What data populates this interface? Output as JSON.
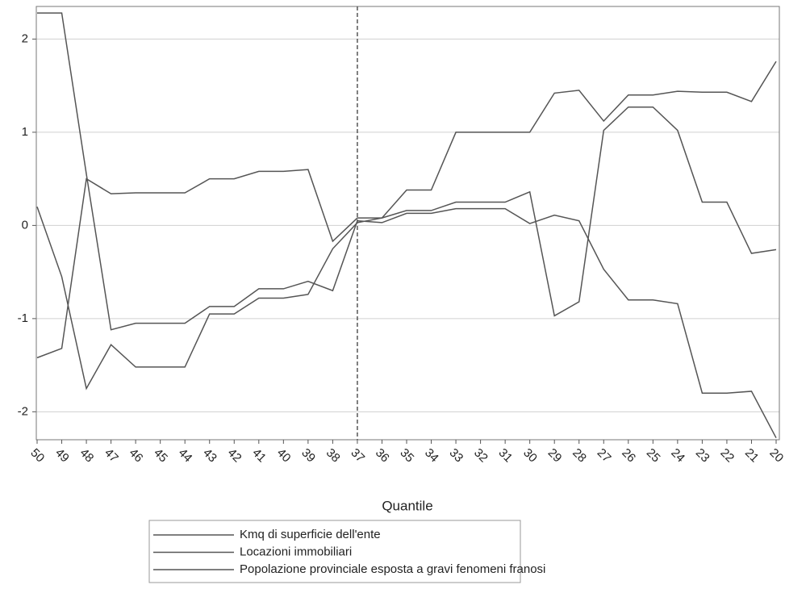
{
  "chart_data": {
    "type": "line",
    "x_label": "Quantile",
    "categories": [
      "50",
      "49",
      "48",
      "47",
      "46",
      "45",
      "44",
      "43",
      "42",
      "41",
      "40",
      "39",
      "38",
      "37",
      "36",
      "35",
      "34",
      "33",
      "32",
      "31",
      "30",
      "29",
      "28",
      "27",
      "26",
      "25",
      "24",
      "23",
      "22",
      "21",
      "20"
    ],
    "vline": "37",
    "ylim": [
      -2.3,
      2.35
    ],
    "yticks": [
      -2,
      -1,
      0,
      1,
      2
    ],
    "grid": true,
    "series": [
      {
        "name": "Kmq di superficie dell'ente",
        "color": "#555555",
        "values": [
          2.28,
          2.28,
          0.55,
          -1.12,
          -1.05,
          -1.05,
          -1.05,
          -0.87,
          -0.87,
          -0.68,
          -0.68,
          -0.6,
          -0.7,
          0.05,
          0.03,
          0.13,
          0.13,
          0.18,
          0.18,
          0.18,
          0.02,
          0.11,
          0.05,
          -0.47,
          -0.8,
          -0.8,
          -0.84,
          -1.8,
          -1.8,
          -1.78,
          -2.28
        ]
      },
      {
        "name": "Locazioni immobiliari",
        "color": "#555555",
        "values": [
          0.2,
          -0.55,
          -1.75,
          -1.28,
          -1.52,
          -1.52,
          -1.52,
          -0.95,
          -0.95,
          -0.78,
          -0.78,
          -0.74,
          -0.25,
          0.03,
          0.08,
          0.16,
          0.16,
          0.25,
          0.25,
          0.25,
          0.36,
          -0.97,
          -0.82,
          1.02,
          1.27,
          1.27,
          1.02,
          0.25,
          0.25,
          -0.3,
          -0.26
        ]
      },
      {
        "name": "Popolazione provinciale esposta a gravi fenomeni franosi",
        "color": "#555555",
        "values": [
          -1.42,
          -1.32,
          0.5,
          0.34,
          0.35,
          0.35,
          0.35,
          0.5,
          0.5,
          0.58,
          0.58,
          0.6,
          -0.17,
          0.08,
          0.08,
          0.38,
          0.38,
          1.0,
          1.0,
          1.0,
          1.0,
          1.42,
          1.45,
          1.12,
          1.4,
          1.4,
          1.44,
          1.43,
          1.43,
          1.33,
          1.76
        ]
      }
    ]
  }
}
